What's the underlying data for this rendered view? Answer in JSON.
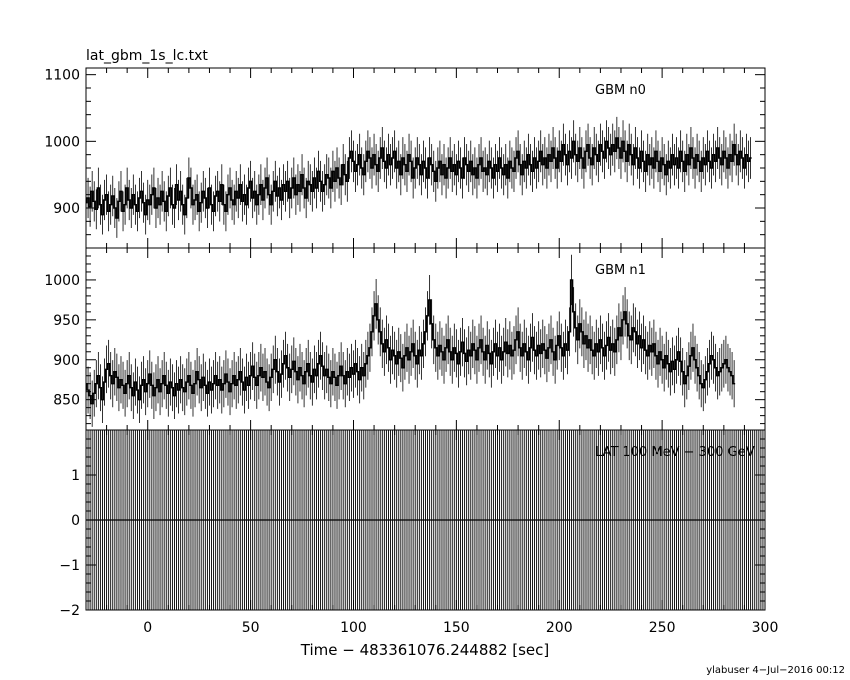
{
  "chart_data": {
    "title": "lat_gbm_1s_lc.txt",
    "xlabel": "Time − 483361076.244882 [sec]",
    "footer": "ylabuser  4−Jul−2016 00:12",
    "xlim": [
      -30,
      300
    ],
    "xticks": [
      0,
      50,
      100,
      150,
      200,
      250,
      300
    ],
    "xtick_labels": [
      "0",
      "50",
      "100",
      "150",
      "200",
      "250",
      "300"
    ],
    "panels": [
      {
        "type": "line",
        "label": "GBM n0",
        "ylim": [
          840,
          1110
        ],
        "yticks": [
          900,
          1000,
          1100
        ],
        "ytick_labels": [
          "900",
          "1000",
          "1100"
        ],
        "series": {
          "t_start": -30,
          "t_step": 1,
          "values": [
            908,
            915,
            902,
            925,
            910,
            898,
            930,
            905,
            890,
            912,
            920,
            895,
            905,
            918,
            900,
            885,
            910,
            925,
            895,
            905,
            930,
            912,
            900,
            920,
            905,
            895,
            915,
            925,
            908,
            890,
            912,
            905,
            920,
            930,
            900,
            915,
            905,
            925,
            910,
            895,
            918,
            930,
            905,
            900,
            935,
            912,
            925,
            905,
            890,
            915,
            945,
            930,
            905,
            912,
            920,
            895,
            908,
            925,
            915,
            900,
            930,
            905,
            895,
            918,
            925,
            910,
            935,
            905,
            895,
            920,
            930,
            912,
            905,
            925,
            915,
            935,
            910,
            920,
            905,
            930,
            940,
            915,
            925,
            905,
            920,
            935,
            912,
            930,
            945,
            920,
            905,
            925,
            940,
            918,
            930,
            912,
            935,
            925,
            940,
            915,
            930,
            945,
            920,
            935,
            925,
            950,
            930,
            915,
            940,
            935,
            925,
            945,
            930,
            955,
            940,
            925,
            935,
            950,
            945,
            930,
            955,
            940,
            960,
            945,
            935,
            965,
            950,
            940,
            975,
            985,
            970,
            955,
            965,
            980,
            960,
            950,
            970,
            985,
            975,
            960,
            980,
            965,
            955,
            975,
            990,
            970,
            960,
            980,
            965,
            975,
            985,
            960,
            970,
            950,
            975,
            965,
            955,
            980,
            970,
            945,
            960,
            975,
            965,
            950,
            970,
            960,
            945,
            975,
            965,
            955,
            940,
            960,
            970,
            950,
            965,
            945,
            960,
            975,
            955,
            965,
            950,
            970,
            960,
            945,
            975,
            965,
            955,
            970,
            950,
            960,
            945,
            965,
            975,
            955,
            960,
            950,
            970,
            960,
            945,
            965,
            955,
            975,
            960,
            950,
            965,
            945,
            970,
            960,
            955,
            975,
            985,
            965,
            950,
            970,
            960,
            980,
            965,
            955,
            975,
            960,
            970,
            985,
            965,
            975,
            960,
            980,
            970,
            990,
            975,
            960,
            985,
            970,
            995,
            980,
            965,
            985,
            975,
            1000,
            980,
            970,
            990,
            975,
            960,
            985,
            995,
            975,
            965,
            990,
            980,
            970,
            995,
            985,
            975,
            1000,
            990,
            980,
            995,
            985,
            1005,
            990,
            975,
            1000,
            985,
            970,
            995,
            980,
            965,
            990,
            975,
            960,
            985,
            970,
            955,
            980,
            965,
            975,
            960,
            985,
            970,
            955,
            975,
            965,
            950,
            970,
            960,
            980,
            965,
            975,
            960,
            985,
            970,
            955,
            980,
            965,
            990,
            975,
            960,
            980,
            970,
            955,
            975,
            965,
            985,
            970,
            960,
            980,
            970,
            990,
            975,
            965,
            985,
            975,
            960,
            980,
            970,
            995,
            980,
            965,
            985,
            975,
            960,
            980,
            970,
            975
          ]
        }
      },
      {
        "type": "line",
        "label": "GBM n1",
        "ylim": [
          812,
          1040
        ],
        "yticks": [
          850,
          900,
          950,
          1000
        ],
        "ytick_labels": [
          "850",
          "900",
          "950",
          "1000"
        ],
        "series": {
          "t_start": -30,
          "t_step": 1,
          "values": [
            870,
            862,
            855,
            845,
            858,
            870,
            880,
            865,
            850,
            872,
            888,
            895,
            880,
            870,
            885,
            878,
            865,
            875,
            868,
            858,
            870,
            880,
            865,
            855,
            872,
            862,
            850,
            868,
            875,
            860,
            870,
            882,
            868,
            855,
            865,
            875,
            860,
            870,
            880,
            868,
            858,
            872,
            865,
            855,
            870,
            862,
            875,
            865,
            860,
            872,
            880,
            868,
            858,
            870,
            885,
            875,
            865,
            878,
            868,
            858,
            872,
            862,
            870,
            880,
            868,
            875,
            862,
            870,
            882,
            872,
            860,
            870,
            880,
            868,
            875,
            885,
            872,
            862,
            878,
            868,
            880,
            892,
            878,
            868,
            880,
            890,
            878,
            885,
            872,
            865,
            878,
            888,
            900,
            885,
            872,
            882,
            895,
            905,
            890,
            878,
            888,
            898,
            885,
            875,
            890,
            880,
            870,
            885,
            895,
            880,
            872,
            888,
            880,
            895,
            905,
            892,
            880,
            888,
            878,
            870,
            885,
            878,
            868,
            880,
            892,
            880,
            870,
            885,
            878,
            890,
            882,
            895,
            885,
            875,
            890,
            880,
            895,
            905,
            915,
            935,
            955,
            970,
            950,
            935,
            920,
            910,
            925,
            915,
            900,
            912,
            905,
            895,
            910,
            902,
            890,
            905,
            915,
            900,
            910,
            920,
            905,
            895,
            912,
            905,
            920,
            935,
            955,
            975,
            945,
            925,
            915,
            905,
            918,
            910,
            900,
            915,
            925,
            910,
            900,
            915,
            908,
            895,
            910,
            922,
            908,
            898,
            912,
            905,
            920,
            912,
            900,
            915,
            925,
            910,
            900,
            918,
            908,
            895,
            910,
            920,
            905,
            915,
            900,
            910,
            922,
            908,
            918,
            905,
            912,
            925,
            935,
            915,
            905,
            920,
            910,
            900,
            915,
            928,
            912,
            905,
            918,
            908,
            920,
            912,
            902,
            915,
            925,
            910,
            900,
            918,
            930,
            915,
            905,
            920,
            912,
            935,
            1000,
            960,
            940,
            925,
            945,
            935,
            920,
            930,
            915,
            925,
            912,
            905,
            920,
            910,
            925,
            915,
            905,
            918,
            928,
            912,
            920,
            910,
            925,
            940,
            930,
            950,
            960,
            945,
            930,
            925,
            940,
            935,
            920,
            930,
            915,
            925,
            912,
            905,
            918,
            910,
            920,
            905,
            895,
            910,
            900,
            890,
            905,
            895,
            885,
            898,
            888,
            900,
            910,
            898,
            885,
            870,
            880,
            892,
            905,
            915,
            900,
            890,
            880,
            870,
            865,
            875,
            885,
            895,
            905,
            900,
            890,
            880,
            885,
            890,
            895,
            900,
            890,
            885,
            880,
            870
          ]
        }
      },
      {
        "type": "bar",
        "label": "LAT 100 MeV − 300 GeV",
        "ylim": [
          -2,
          2
        ],
        "yticks": [
          -2,
          -1,
          0,
          1
        ],
        "ytick_labels": [
          "−2",
          "−1",
          "0",
          "1"
        ],
        "series": {
          "t_start": -30,
          "t_end": 300,
          "t_step": 1,
          "value": 0,
          "error": 2
        }
      }
    ]
  }
}
